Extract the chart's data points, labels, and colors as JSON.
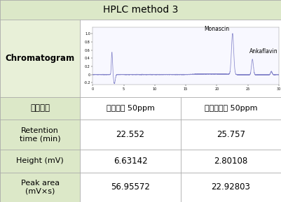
{
  "title": "HPLC method 3",
  "header_bg": "#dce8c8",
  "cell_bg_left": "#e8f0d8",
  "cell_bg_white": "#ffffff",
  "border_color": "#aaaaaa",
  "row_labels_en": [
    "Chromatogram",
    "Retention\ntime (min)",
    "Height (mV)",
    "Peak area\n(mV×s)"
  ],
  "row_label_ko": "대상물질",
  "col1_label": "모나스신 50ppm",
  "col2_label": "안카플라빈 50ppm",
  "retention_time": [
    "22.552",
    "25.757"
  ],
  "height_vals": [
    "6.63142",
    "2.80108"
  ],
  "peak_area": [
    "56.95572",
    "22.92803"
  ],
  "monascin_label": "Monascin",
  "ankaflavin_label": "Ankaflavin",
  "line_color": "#8888cc"
}
